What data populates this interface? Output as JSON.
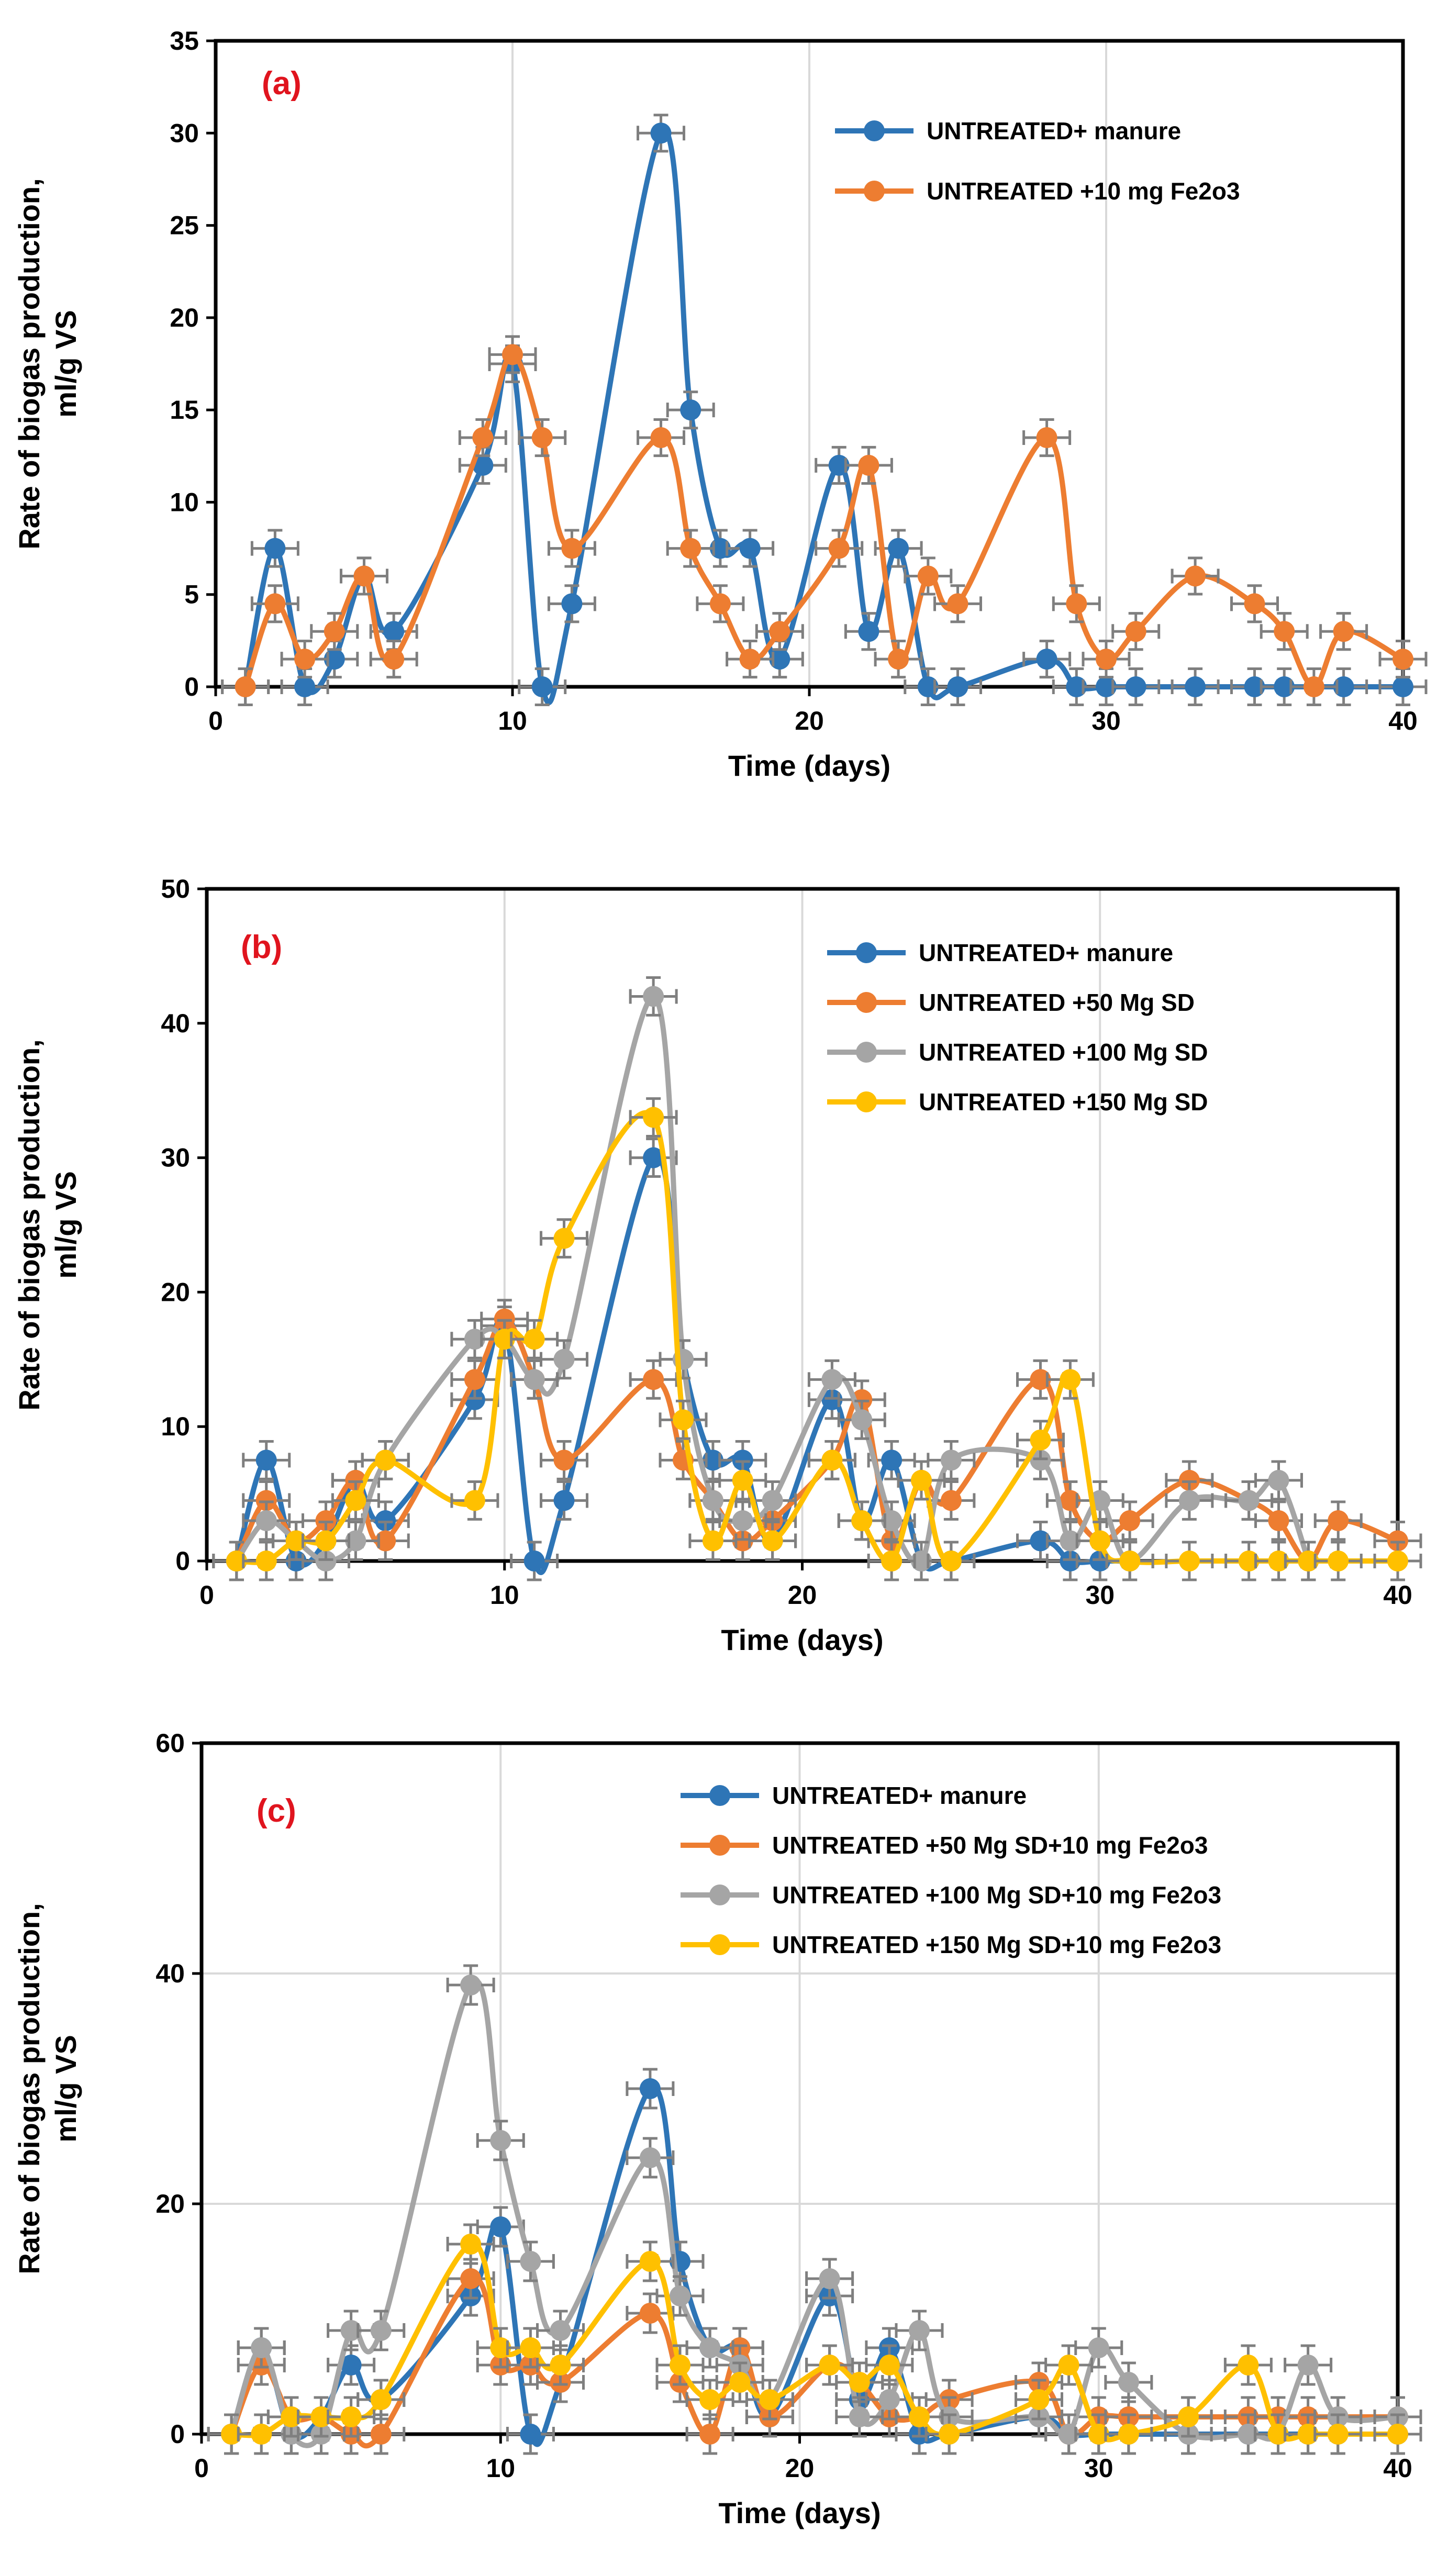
{
  "chart_data": [
    {
      "type": "line",
      "panel_label": "(a)",
      "xlabel": "Time (days)",
      "ylabel_lines": [
        "Rate of biogas production,",
        "ml/g VS"
      ],
      "xlim": [
        0,
        40
      ],
      "ylim": [
        0,
        35
      ],
      "xticks": [
        "0",
        "10",
        "20",
        "30",
        "40"
      ],
      "yticks": [
        "0",
        "5",
        "10",
        "15",
        "20",
        "25",
        "30",
        "35"
      ],
      "grid": "vertical",
      "legend": "top-right",
      "series": [
        {
          "name": "UNTREATED+ manure",
          "color": "#2e75b6",
          "x": [
            1,
            2,
            3,
            4,
            5,
            6,
            9,
            10,
            11,
            12,
            15,
            16,
            17,
            18,
            19,
            21,
            22,
            23,
            24,
            25,
            28,
            29,
            30,
            31,
            33,
            35,
            36,
            38,
            40
          ],
          "y": [
            0,
            7.5,
            0,
            1.5,
            6,
            3,
            12,
            17.5,
            0,
            4.5,
            30,
            15,
            7.5,
            7.5,
            1.5,
            12,
            3,
            7.5,
            0,
            0,
            1.5,
            0,
            0,
            0,
            0,
            0,
            0,
            0,
            0
          ]
        },
        {
          "name": "UNTREATED +10 mg Fe2o3",
          "color": "#ed7d31",
          "x": [
            1,
            2,
            3,
            4,
            5,
            6,
            9,
            10,
            11,
            12,
            15,
            16,
            17,
            18,
            19,
            21,
            22,
            23,
            24,
            25,
            28,
            29,
            30,
            31,
            33,
            35,
            36,
            37,
            38,
            40
          ],
          "y": [
            0,
            4.5,
            1.5,
            3,
            6,
            1.5,
            13.5,
            18,
            13.5,
            7.5,
            13.5,
            7.5,
            4.5,
            1.5,
            3,
            7.5,
            12,
            1.5,
            6,
            4.5,
            13.5,
            4.5,
            1.5,
            3,
            6,
            4.5,
            3,
            0,
            3,
            1.5
          ]
        }
      ]
    },
    {
      "type": "line",
      "panel_label": "(b)",
      "xlabel": "Time (days)",
      "ylabel_lines": [
        "Rate of biogas production,",
        "ml/g VS"
      ],
      "xlim": [
        0,
        40
      ],
      "ylim": [
        0,
        50
      ],
      "xticks": [
        "0",
        "10",
        "20",
        "30",
        "40"
      ],
      "yticks": [
        "0",
        "10",
        "20",
        "30",
        "40",
        "50"
      ],
      "grid": "vertical",
      "legend": "top-right",
      "series": [
        {
          "name": "UNTREATED+ manure",
          "color": "#2e75b6",
          "x": [
            1,
            2,
            3,
            4,
            5,
            6,
            9,
            10,
            11,
            12,
            15,
            16,
            17,
            18,
            19,
            21,
            22,
            23,
            24,
            25,
            28,
            29,
            30,
            31
          ],
          "y": [
            0,
            7.5,
            0,
            1.5,
            6,
            3,
            12,
            17.5,
            0,
            4.5,
            30,
            15,
            7.5,
            7.5,
            1.5,
            12,
            3,
            7.5,
            0,
            0,
            1.5,
            0,
            0,
            0
          ]
        },
        {
          "name": "UNTREATED +50 Mg SD",
          "color": "#ed7d31",
          "x": [
            1,
            2,
            3,
            4,
            5,
            6,
            9,
            10,
            11,
            12,
            15,
            16,
            17,
            18,
            19,
            21,
            22,
            23,
            24,
            25,
            28,
            29,
            30,
            31,
            33,
            35,
            36,
            37,
            38,
            40
          ],
          "y": [
            0,
            4.5,
            1.5,
            3,
            6,
            1.5,
            13.5,
            18,
            13.5,
            7.5,
            13.5,
            7.5,
            4.5,
            1.5,
            3,
            7.5,
            12,
            1.5,
            6,
            4.5,
            13.5,
            4.5,
            1.5,
            3,
            6,
            4.5,
            3,
            0,
            3,
            1.5
          ]
        },
        {
          "name": "UNTREATED +100 Mg SD",
          "color": "#a5a5a5",
          "x": [
            1,
            2,
            3,
            4,
            5,
            6,
            9,
            10,
            11,
            12,
            15,
            16,
            17,
            18,
            19,
            21,
            22,
            23,
            24,
            25,
            28,
            29,
            30,
            31,
            33,
            35,
            36,
            37
          ],
          "y": [
            0,
            3,
            1.5,
            0,
            1.5,
            7.5,
            16.5,
            16.5,
            13.5,
            15,
            42,
            15,
            4.5,
            3,
            4.5,
            13.5,
            10.5,
            3,
            0,
            7.5,
            7.5,
            1.5,
            4.5,
            0,
            4.5,
            4.5,
            6,
            0
          ]
        },
        {
          "name": "UNTREATED +150 Mg SD",
          "color": "#ffc000",
          "x": [
            1,
            2,
            3,
            4,
            5,
            6,
            9,
            10,
            11,
            12,
            15,
            16,
            17,
            18,
            19,
            21,
            22,
            23,
            24,
            25,
            28,
            29,
            30,
            31,
            33,
            35,
            36,
            37,
            38,
            40
          ],
          "y": [
            0,
            0,
            1.5,
            1.5,
            4.5,
            7.5,
            4.5,
            16.5,
            16.5,
            24,
            33,
            10.5,
            1.5,
            6,
            1.5,
            7.5,
            3,
            0,
            6,
            0,
            9,
            13.5,
            1.5,
            0,
            0,
            0,
            0,
            0,
            0,
            0
          ]
        }
      ]
    },
    {
      "type": "line",
      "panel_label": "(c)",
      "xlabel": "Time (days)",
      "ylabel_lines": [
        "Rate of biogas production,",
        "ml/g VS"
      ],
      "xlim": [
        0,
        40
      ],
      "ylim": [
        0,
        60
      ],
      "xticks": [
        "0",
        "10",
        "20",
        "30",
        "40"
      ],
      "yticks": [
        "0",
        "20",
        "40",
        "60"
      ],
      "grid": "both",
      "legend": "top-right",
      "series": [
        {
          "name": "UNTREATED+ manure",
          "color": "#2e75b6",
          "x": [
            1,
            2,
            3,
            4,
            5,
            6,
            9,
            10,
            11,
            12,
            15,
            16,
            17,
            18,
            19,
            21,
            22,
            23,
            24,
            25,
            28,
            29,
            30,
            31,
            33,
            35,
            36,
            37,
            38,
            40
          ],
          "y": [
            0,
            7.5,
            0,
            1.5,
            6,
            3,
            12,
            18,
            0,
            4.5,
            30,
            15,
            7.5,
            7.5,
            1.5,
            12,
            3,
            7.5,
            0,
            0,
            1.5,
            0,
            0,
            0,
            0,
            0,
            0,
            0,
            0,
            0
          ]
        },
        {
          "name": "UNTREATED +50 Mg SD+10 mg  Fe2o3",
          "color": "#ed7d31",
          "x": [
            1,
            2,
            3,
            4,
            5,
            6,
            9,
            10,
            11,
            12,
            15,
            16,
            17,
            18,
            19,
            21,
            22,
            23,
            24,
            25,
            28,
            29,
            30,
            31,
            33,
            35,
            36,
            37,
            38,
            40
          ],
          "y": [
            0,
            6,
            1.5,
            1.5,
            0,
            0,
            13.5,
            6,
            6,
            4.5,
            10.5,
            4.5,
            0,
            7.5,
            1.5,
            6,
            4.5,
            1.5,
            1.5,
            3,
            4.5,
            0,
            1.5,
            1.5,
            1.5,
            1.5,
            1.5,
            1.5,
            1.5,
            1.5
          ]
        },
        {
          "name": "UNTREATED +100 Mg SD+10 mg  Fe2o3",
          "color": "#a5a5a5",
          "x": [
            1,
            2,
            3,
            4,
            5,
            6,
            9,
            10,
            11,
            12,
            15,
            16,
            17,
            18,
            19,
            21,
            22,
            23,
            24,
            25,
            28,
            29,
            30,
            31,
            33,
            35,
            36,
            37,
            38,
            40
          ],
          "y": [
            0,
            7.5,
            0,
            0,
            9,
            9,
            39,
            25.5,
            15,
            9,
            24,
            12,
            7.5,
            6,
            3,
            13.5,
            1.5,
            3,
            9,
            1.5,
            1.5,
            0,
            7.5,
            4.5,
            0,
            0,
            0,
            6,
            1.5,
            1.5
          ]
        },
        {
          "name": "UNTREATED +150 Mg SD+10 mg  Fe2o3",
          "color": "#ffc000",
          "x": [
            1,
            2,
            3,
            4,
            5,
            6,
            9,
            10,
            11,
            12,
            15,
            16,
            17,
            18,
            19,
            21,
            22,
            23,
            24,
            25,
            28,
            29,
            30,
            31,
            33,
            35,
            36,
            37,
            38,
            40
          ],
          "y": [
            0,
            0,
            1.5,
            1.5,
            1.5,
            3,
            16.5,
            7.5,
            7.5,
            6,
            15,
            6,
            3,
            4.5,
            3,
            6,
            4.5,
            6,
            1.5,
            0,
            3,
            6,
            0,
            0,
            1.5,
            6,
            0,
            0,
            0,
            0
          ]
        }
      ]
    }
  ]
}
